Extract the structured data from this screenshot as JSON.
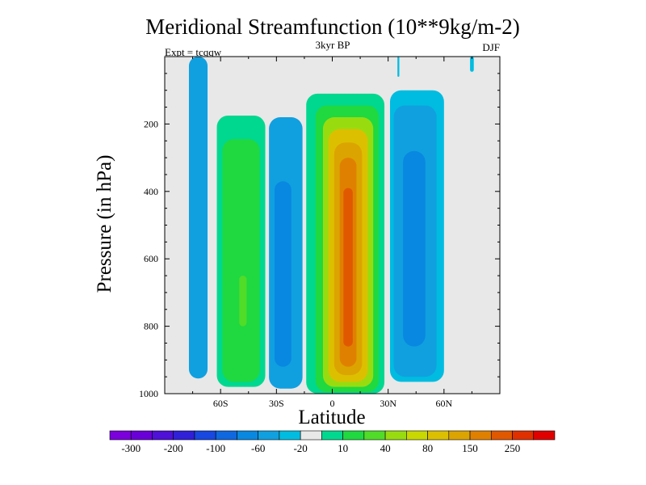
{
  "chart_data": {
    "type": "heatmap",
    "title": "Meridional Streamfunction (10**9kg/m-2)",
    "subtitle_center": "3kyr BP",
    "subtitle_left": "Expt = tcqqw",
    "subtitle_right": "DJF",
    "xlabel": "Latitude",
    "ylabel": "Pressure (in hPa)",
    "xlim": [
      -90,
      90
    ],
    "ylim": [
      0,
      1000
    ],
    "y_inverted": true,
    "x_ticks": [
      {
        "value": -60,
        "label": "60S"
      },
      {
        "value": -30,
        "label": "30S"
      },
      {
        "value": 0,
        "label": "0"
      },
      {
        "value": 30,
        "label": "30N"
      },
      {
        "value": 60,
        "label": "60N"
      }
    ],
    "y_ticks": [
      {
        "value": 200,
        "label": "200"
      },
      {
        "value": 400,
        "label": "400"
      },
      {
        "value": 600,
        "label": "600"
      },
      {
        "value": 800,
        "label": "800"
      },
      {
        "value": 1000,
        "label": "1000"
      }
    ],
    "colorbar": {
      "colors": [
        "#7b00dc",
        "#6a00d8",
        "#4f10d8",
        "#3020d8",
        "#1848e0",
        "#1068e0",
        "#0888e0",
        "#10a0e0",
        "#00bce0",
        "#e8e8e8",
        "#00d890",
        "#20d840",
        "#50dc28",
        "#98dc10",
        "#c8d800",
        "#dcc000",
        "#dca400",
        "#e08000",
        "#e05800",
        "#e03000",
        "#e00000"
      ],
      "labels": [
        {
          "after_index": 0,
          "label": "-300"
        },
        {
          "after_index": 2,
          "label": "-200"
        },
        {
          "after_index": 4,
          "label": "-100"
        },
        {
          "after_index": 6,
          "label": "-60"
        },
        {
          "after_index": 8,
          "label": "-20"
        },
        {
          "after_index": 10,
          "label": "10"
        },
        {
          "after_index": 12,
          "label": "40"
        },
        {
          "after_index": 14,
          "label": "80"
        },
        {
          "after_index": 16,
          "label": "150"
        },
        {
          "after_index": 18,
          "label": "250"
        }
      ]
    },
    "background_color": "#e8e8e8",
    "cells": [
      {
        "name": "sh-polar-cell",
        "sign": "negative",
        "lat_range": [
          -77,
          -67
        ],
        "p_range": [
          0,
          955
        ],
        "levels": [
          {
            "lat": [
              -77,
              -67
            ],
            "p": [
              0,
              955
            ],
            "color": "#10a0e0"
          }
        ]
      },
      {
        "name": "sh-ferrel-cell",
        "sign": "positive",
        "lat_range": [
          -62,
          -36
        ],
        "p_range": [
          175,
          980
        ],
        "levels": [
          {
            "lat": [
              -62,
              -36
            ],
            "p": [
              175,
              980
            ],
            "color": "#00d890"
          },
          {
            "lat": [
              -59,
              -39
            ],
            "p": [
              245,
              965
            ],
            "color": "#20d840"
          },
          {
            "lat": [
              -50,
              -46
            ],
            "p": [
              650,
              800
            ],
            "color": "#50dc28"
          }
        ]
      },
      {
        "name": "sh-hadley-cell",
        "sign": "negative",
        "lat_range": [
          -34,
          -16
        ],
        "p_range": [
          180,
          985
        ],
        "levels": [
          {
            "lat": [
              -34,
              -16
            ],
            "p": [
              180,
              985
            ],
            "color": "#10a0e0"
          },
          {
            "lat": [
              -31,
              -22
            ],
            "p": [
              370,
              920
            ],
            "color": "#0888e0"
          }
        ]
      },
      {
        "name": "winter-hadley-cell",
        "sign": "positive",
        "lat_range": [
          -14,
          28
        ],
        "p_range": [
          110,
          1000
        ],
        "levels": [
          {
            "lat": [
              -14,
              28
            ],
            "p": [
              110,
              1000
            ],
            "color": "#00d890"
          },
          {
            "lat": [
              -9,
              25
            ],
            "p": [
              145,
              995
            ],
            "color": "#20d840"
          },
          {
            "lat": [
              -5,
              22
            ],
            "p": [
              180,
              980
            ],
            "color": "#98dc10"
          },
          {
            "lat": [
              -2,
              19
            ],
            "p": [
              215,
              965
            ],
            "color": "#dcc000"
          },
          {
            "lat": [
              1,
              16
            ],
            "p": [
              255,
              945
            ],
            "color": "#dca400"
          },
          {
            "lat": [
              4,
              13
            ],
            "p": [
              300,
              920
            ],
            "color": "#e08000"
          },
          {
            "lat": [
              6,
              11
            ],
            "p": [
              390,
              860
            ],
            "color": "#e05800"
          }
        ]
      },
      {
        "name": "nh-ferrel-cell",
        "sign": "negative",
        "lat_range": [
          31,
          60
        ],
        "p_range": [
          100,
          965
        ],
        "levels": [
          {
            "lat": [
              31,
              60
            ],
            "p": [
              100,
              965
            ],
            "color": "#00bce0"
          },
          {
            "lat": [
              33,
              56
            ],
            "p": [
              145,
              950
            ],
            "color": "#10a0e0"
          },
          {
            "lat": [
              38,
              50
            ],
            "p": [
              280,
              860
            ],
            "color": "#0888e0"
          }
        ]
      },
      {
        "name": "top-streak-north",
        "sign": "negative",
        "lat_range": [
          35,
          36
        ],
        "p_range": [
          0,
          60
        ],
        "levels": [
          {
            "lat": [
              35,
              36
            ],
            "p": [
              0,
              60
            ],
            "color": "#00bce0"
          }
        ]
      },
      {
        "name": "top-streak-polar",
        "sign": "negative",
        "lat_range": [
          74,
          76
        ],
        "p_range": [
          0,
          45
        ],
        "levels": [
          {
            "lat": [
              74,
              76
            ],
            "p": [
              0,
              45
            ],
            "color": "#00bce0"
          }
        ]
      }
    ]
  }
}
